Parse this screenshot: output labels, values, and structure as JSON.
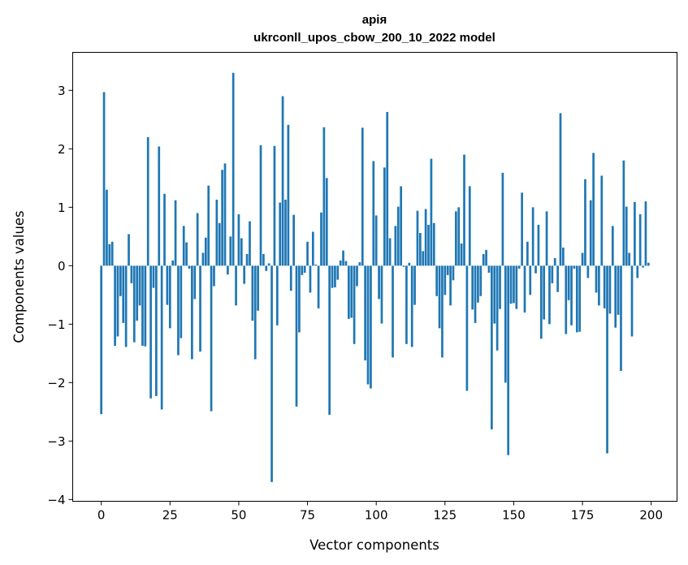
{
  "chart_data": {
    "type": "bar",
    "title_lines": [
      "apiя",
      "ukrconll_upos_cbow_200_10_2022 model"
    ],
    "xlabel": "Vector components",
    "ylabel": "Components values",
    "xlim": [
      -10.39,
      209.39
    ],
    "ylim": [
      -4.03,
      3.65
    ],
    "xticks": [
      0,
      25,
      50,
      75,
      100,
      125,
      150,
      175,
      200
    ],
    "xtick_labels": [
      "0",
      "25",
      "50",
      "75",
      "100",
      "125",
      "150",
      "175",
      "200"
    ],
    "yticks": [
      -4,
      -3,
      -2,
      -1,
      0,
      1,
      2,
      3
    ],
    "ytick_labels": [
      "−4",
      "−3",
      "−2",
      "−1",
      "0",
      "1",
      "2",
      "3"
    ],
    "grid": false,
    "bar_color": "#1f77b4",
    "bar_width": 0.8,
    "values": [
      -2.54,
      2.97,
      1.3,
      0.37,
      0.41,
      -1.37,
      -1.21,
      -0.52,
      -0.98,
      -1.39,
      0.54,
      -0.3,
      -1.31,
      -0.94,
      -0.68,
      -1.37,
      -1.38,
      2.2,
      -2.27,
      -0.38,
      -2.23,
      2.04,
      -2.46,
      1.23,
      -0.67,
      -1.07,
      0.09,
      1.12,
      -1.53,
      -1.24,
      0.68,
      0.4,
      -0.05,
      -1.6,
      -0.57,
      0.9,
      -1.47,
      0.22,
      0.48,
      1.37,
      -2.49,
      -0.35,
      1.13,
      0.73,
      1.64,
      1.75,
      -0.15,
      0.5,
      3.3,
      -0.68,
      0.88,
      0.47,
      -0.31,
      0.2,
      0.76,
      -0.94,
      -1.6,
      -0.77,
      2.06,
      0.2,
      -0.09,
      0.04,
      -3.7,
      2.05,
      -1.02,
      1.08,
      2.9,
      1.13,
      2.41,
      -0.43,
      0.87,
      -2.41,
      -1.14,
      -0.16,
      -0.12,
      0.41,
      -0.46,
      0.58,
      0.02,
      -0.73,
      0.91,
      2.37,
      1.5,
      -2.55,
      -0.38,
      -0.37,
      -0.24,
      0.09,
      0.26,
      0.08,
      -0.91,
      -0.89,
      -1.34,
      -0.35,
      0.06,
      2.36,
      -1.62,
      -2.03,
      -2.1,
      1.79,
      0.86,
      -0.57,
      -0.99,
      1.68,
      2.63,
      0.47,
      -1.57,
      0.68,
      1.01,
      1.36,
      -0.02,
      -1.34,
      0.05,
      -1.39,
      -0.67,
      0.94,
      0.56,
      0.25,
      0.97,
      0.7,
      1.83,
      0.73,
      -0.52,
      -1.07,
      -1.57,
      -0.5,
      -0.16,
      -0.68,
      -0.25,
      0.93,
      1.0,
      0.38,
      1.9,
      -2.14,
      1.36,
      -0.75,
      -0.98,
      -0.63,
      -0.52,
      0.2,
      0.27,
      -0.12,
      -2.8,
      -0.99,
      -1.45,
      -0.74,
      1.59,
      -2.0,
      -3.24,
      -0.65,
      -0.64,
      -0.74,
      -0.05,
      1.25,
      -0.8,
      0.41,
      -0.5,
      1.0,
      -0.13,
      0.7,
      -1.25,
      -0.92,
      0.93,
      -1.0,
      -0.3,
      0.13,
      -0.45,
      2.61,
      0.31,
      -1.17,
      -0.59,
      -1.02,
      -0.05,
      -1.14,
      -1.13,
      0.22,
      1.48,
      -0.21,
      1.12,
      1.93,
      -0.46,
      -0.68,
      1.54,
      -0.73,
      -3.21,
      -0.82,
      0.68,
      -1.06,
      -0.84,
      -1.8,
      1.8,
      1.01,
      0.22,
      -1.21,
      1.09,
      -0.21,
      0.88,
      -0.03,
      1.1,
      0.05
    ]
  }
}
